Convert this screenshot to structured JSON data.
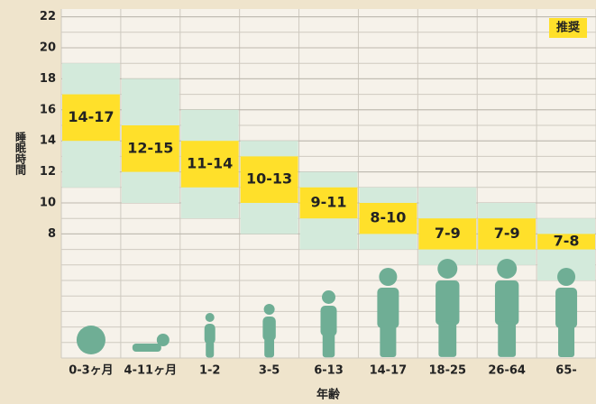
{
  "chart_data": {
    "type": "range_bar",
    "y_label": "睡眠時間",
    "x_label": "年齢",
    "categories": [
      "0-3ヶ月",
      "4-11ヶ月",
      "1-2",
      "3-5",
      "6-13",
      "14-17",
      "18-25",
      "26-64",
      "65-"
    ],
    "series": [
      {
        "color": "#d3eadb",
        "low": [
          11,
          10,
          9,
          8,
          7,
          7,
          6,
          6,
          5
        ],
        "high": [
          19,
          18,
          16,
          14,
          12,
          11,
          11,
          10,
          9
        ]
      },
      {
        "name": "推奨",
        "color": "#ffe02a",
        "low": [
          14,
          12,
          11,
          10,
          9,
          8,
          7,
          7,
          7
        ],
        "high": [
          17,
          15,
          14,
          13,
          11,
          10,
          9,
          9,
          8
        ],
        "value_labels": [
          "14-17",
          "12-15",
          "11-14",
          "10-13",
          "9-11",
          "8-10",
          "7-9",
          "7-9",
          "7-8"
        ]
      }
    ],
    "ylim": [
      0,
      22.5
    ],
    "yticks": [
      8,
      10,
      12,
      14,
      16,
      18,
      20,
      22
    ],
    "grid": true,
    "grid_step": 1,
    "legend": "top-right",
    "figure_color": "#6fae95"
  }
}
